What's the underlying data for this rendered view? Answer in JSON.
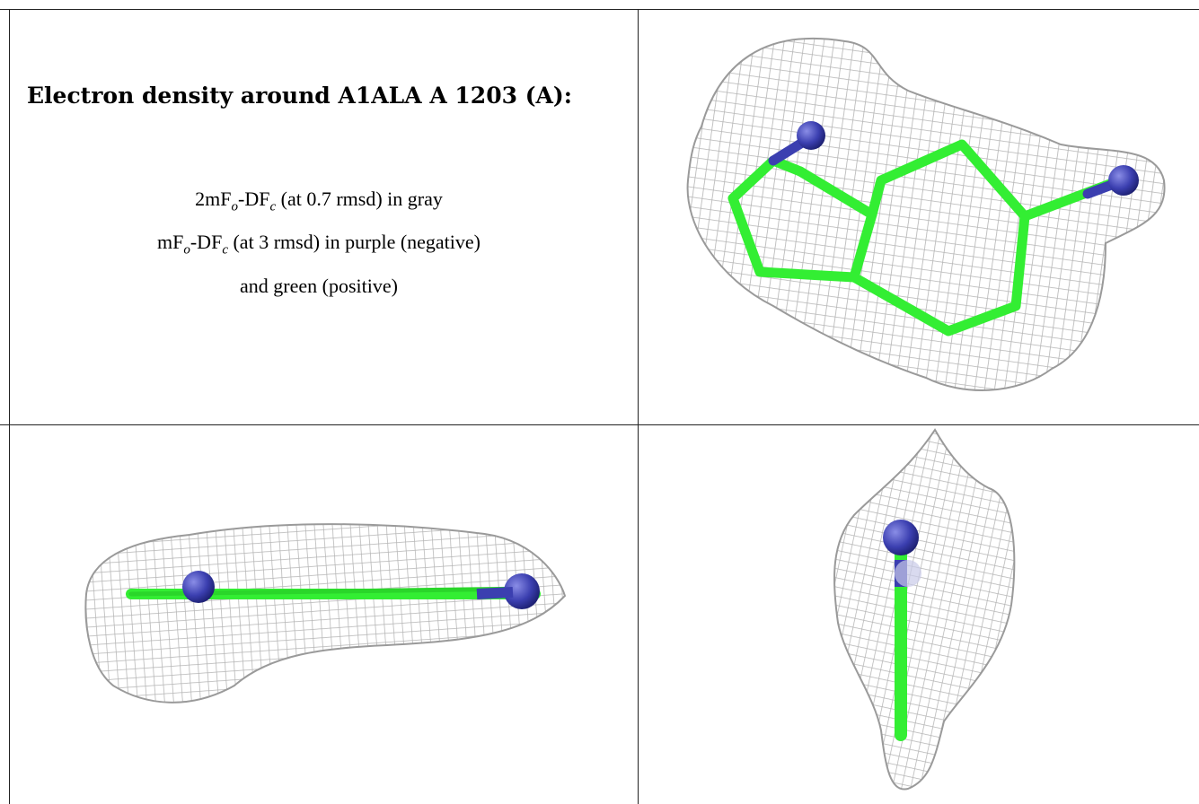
{
  "caption": {
    "title": "Electron density around A1ALA A 1203 (A):",
    "line1_prefix": "2mF",
    "line1_sub_o": "o",
    "line1_mid": "-DF",
    "line1_sub_c": "c",
    "line1_suffix": " (at 0.7 rmsd) in gray",
    "line2_prefix": "mF",
    "line2_sub_o": "o",
    "line2_mid": "-DF",
    "line2_sub_c": "c",
    "line2_suffix": " (at 3 rmsd) in purple (negative)",
    "line3": "and green (positive)"
  },
  "colors": {
    "mesh": "#b4b4b4",
    "carbon": "#33ee33",
    "nitrogen": "#3b3fb0",
    "rules": "#222222"
  },
  "panels": [
    {
      "name": "top-view",
      "icon": "molecule-density-view"
    },
    {
      "name": "side-view",
      "icon": "molecule-density-view"
    },
    {
      "name": "end-view",
      "icon": "molecule-density-view"
    }
  ]
}
